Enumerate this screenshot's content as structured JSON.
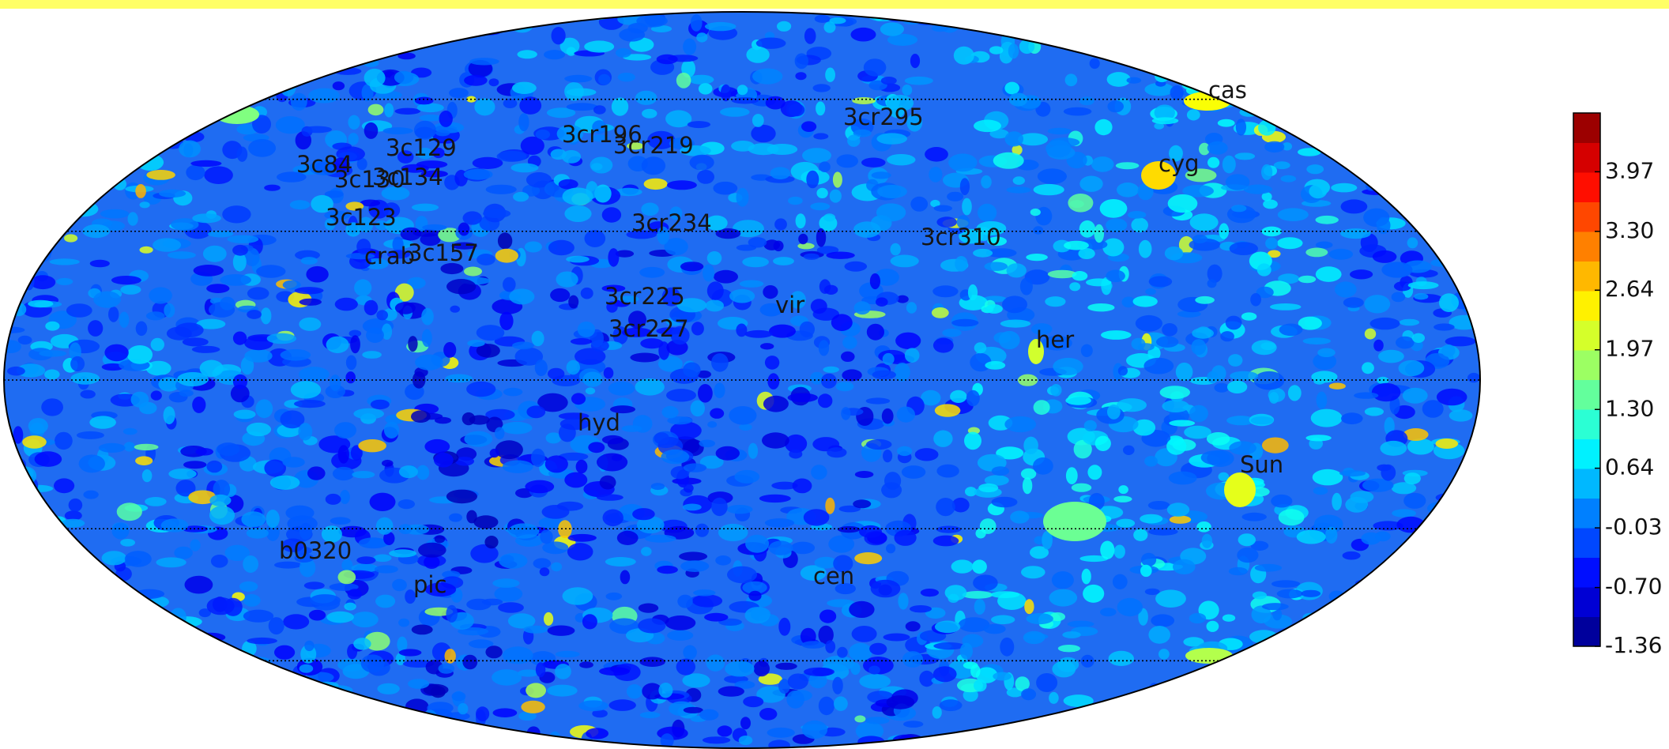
{
  "map": {
    "sources": [
      "cas",
      "cyg",
      "3cr295",
      "3cr196",
      "3cr219",
      "3c129",
      "3c84",
      "3c134",
      "3c130",
      "3c123",
      "3cr234",
      "3cr310",
      "crab",
      "3c157",
      "3cr225",
      "vir",
      "3cr227",
      "her",
      "hyd",
      "Sun",
      "b0320",
      "cen",
      "pic"
    ],
    "colorbar": {
      "lim": [
        -1.36,
        4.63
      ],
      "ticks": [
        3.97,
        {
          "value": 3.3,
          "label": "3.30"
        },
        2.64,
        1.97,
        {
          "value": 1.3,
          "label": "1.30"
        },
        0.64,
        -0.03,
        {
          "value": -0.7,
          "label": "-0.70"
        },
        -1.36
      ]
    }
  }
}
